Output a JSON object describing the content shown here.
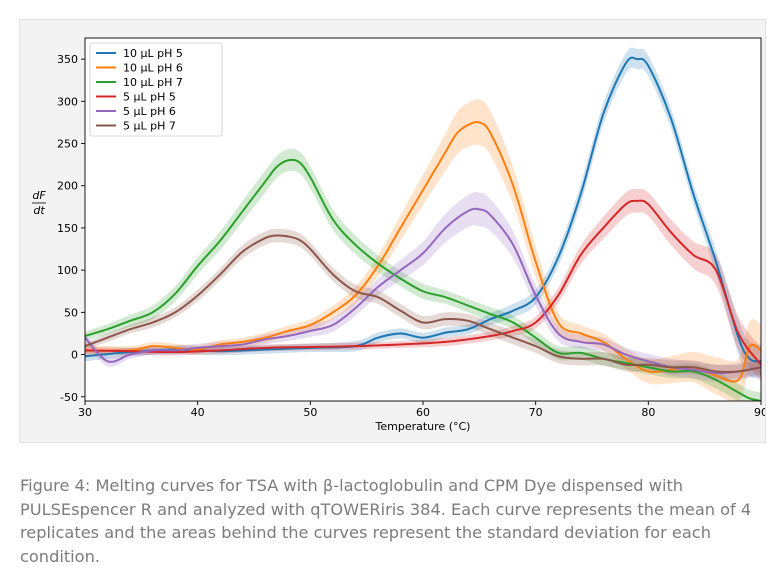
{
  "chart_data": {
    "type": "line",
    "xlabel": "Temperature (°C)",
    "ylabel_top": "dF",
    "ylabel_bottom": "dt",
    "xlim": [
      30,
      90
    ],
    "ylim": [
      -55,
      375
    ],
    "x_ticks": [
      30,
      40,
      50,
      60,
      70,
      80,
      90
    ],
    "y_ticks": [
      -50,
      0,
      50,
      100,
      150,
      200,
      250,
      300,
      350
    ],
    "grid": false,
    "legend_position": "top-left",
    "series": [
      {
        "name": "10 µL pH 5",
        "color": "#1f77b4",
        "x": [
          30,
          34,
          38,
          42,
          46,
          50,
          54,
          56,
          58,
          60,
          62,
          64,
          66,
          68,
          70,
          72,
          74,
          76,
          78,
          79,
          80,
          82,
          84,
          86,
          88,
          89,
          90
        ],
        "y": [
          -2,
          3,
          6,
          4,
          6,
          8,
          10,
          20,
          25,
          20,
          26,
          30,
          42,
          52,
          68,
          115,
          190,
          285,
          345,
          350,
          342,
          280,
          190,
          110,
          20,
          -5,
          -8
        ],
        "std": [
          6,
          5,
          5,
          5,
          5,
          5,
          6,
          6,
          6,
          6,
          6,
          6,
          7,
          8,
          9,
          10,
          12,
          12,
          12,
          12,
          12,
          12,
          12,
          14,
          20,
          20,
          20
        ]
      },
      {
        "name": "10 µL pH 6",
        "color": "#ff7f0e",
        "x": [
          30,
          34,
          36,
          38,
          40,
          42,
          44,
          46,
          48,
          50,
          52,
          54,
          56,
          58,
          60,
          62,
          63,
          64,
          65,
          66,
          68,
          70,
          72,
          74,
          76,
          78,
          80,
          82,
          84,
          86,
          88,
          89,
          90
        ],
        "y": [
          5,
          5,
          10,
          8,
          6,
          12,
          15,
          20,
          28,
          35,
          50,
          70,
          105,
          150,
          195,
          240,
          262,
          272,
          275,
          262,
          200,
          110,
          38,
          25,
          15,
          -5,
          -20,
          -18,
          -15,
          -25,
          -30,
          10,
          5
        ],
        "std": [
          6,
          5,
          5,
          5,
          5,
          5,
          5,
          6,
          6,
          7,
          8,
          10,
          12,
          15,
          18,
          22,
          25,
          26,
          27,
          26,
          22,
          18,
          12,
          10,
          10,
          12,
          14,
          16,
          18,
          22,
          25,
          30,
          30
        ]
      },
      {
        "name": "10 µL pH 7",
        "color": "#2ca02c",
        "x": [
          30,
          32,
          34,
          36,
          38,
          40,
          42,
          44,
          46,
          47,
          48,
          49,
          50,
          52,
          54,
          56,
          58,
          60,
          62,
          64,
          66,
          68,
          70,
          72,
          74,
          76,
          78,
          80,
          82,
          84,
          86,
          88,
          89,
          90
        ],
        "y": [
          22,
          30,
          40,
          50,
          72,
          105,
          135,
          170,
          205,
          222,
          230,
          228,
          210,
          160,
          130,
          108,
          90,
          75,
          68,
          58,
          48,
          38,
          20,
          2,
          2,
          -5,
          -10,
          -15,
          -20,
          -20,
          -30,
          -45,
          -52,
          -55
        ],
        "std": [
          5,
          6,
          7,
          8,
          9,
          10,
          11,
          12,
          13,
          13,
          13,
          13,
          13,
          12,
          11,
          10,
          9,
          9,
          8,
          8,
          8,
          8,
          8,
          8,
          8,
          8,
          8,
          8,
          8,
          9,
          10,
          10,
          10,
          10
        ]
      },
      {
        "name": "5 µL pH 5",
        "color": "#d62728",
        "x": [
          30,
          34,
          38,
          42,
          46,
          50,
          54,
          58,
          62,
          66,
          68,
          70,
          72,
          74,
          76,
          78,
          79,
          80,
          82,
          84,
          86,
          88,
          90
        ],
        "y": [
          5,
          4,
          3,
          5,
          8,
          9,
          10,
          12,
          15,
          22,
          28,
          38,
          70,
          118,
          150,
          178,
          182,
          178,
          145,
          118,
          100,
          25,
          -12
        ],
        "std": [
          4,
          4,
          4,
          4,
          4,
          4,
          4,
          4,
          5,
          5,
          6,
          7,
          9,
          11,
          13,
          14,
          14,
          14,
          15,
          16,
          18,
          20,
          20
        ]
      },
      {
        "name": "5 µL pH 6",
        "color": "#9467bd",
        "x": [
          30,
          32,
          34,
          36,
          38,
          40,
          42,
          44,
          46,
          48,
          50,
          52,
          54,
          56,
          58,
          60,
          62,
          64,
          65,
          66,
          68,
          70,
          72,
          74,
          76,
          78,
          80,
          82,
          84,
          86,
          88,
          90
        ],
        "y": [
          20,
          -8,
          0,
          5,
          5,
          8,
          10,
          12,
          18,
          22,
          28,
          35,
          55,
          80,
          100,
          120,
          150,
          170,
          172,
          165,
          130,
          70,
          25,
          15,
          12,
          0,
          -8,
          -15,
          -18,
          -22,
          -20,
          -15
        ],
        "std": [
          5,
          6,
          5,
          5,
          5,
          5,
          5,
          5,
          6,
          6,
          7,
          8,
          9,
          10,
          12,
          14,
          17,
          19,
          20,
          19,
          16,
          12,
          9,
          8,
          8,
          8,
          9,
          10,
          10,
          10,
          10,
          10
        ]
      },
      {
        "name": "5 µL pH 7",
        "color": "#8c564b",
        "x": [
          30,
          32,
          34,
          36,
          38,
          40,
          42,
          44,
          46,
          47,
          48,
          49,
          50,
          52,
          54,
          56,
          58,
          60,
          62,
          64,
          66,
          68,
          70,
          72,
          74,
          76,
          78,
          80,
          82,
          84,
          86,
          88,
          90
        ],
        "y": [
          10,
          20,
          30,
          38,
          50,
          70,
          95,
          122,
          138,
          141,
          140,
          136,
          125,
          95,
          75,
          68,
          52,
          38,
          42,
          40,
          30,
          20,
          10,
          -2,
          -5,
          -5,
          -12,
          -12,
          -15,
          -15,
          -20,
          -20,
          -15
        ],
        "std": [
          4,
          5,
          5,
          6,
          6,
          7,
          7,
          8,
          8,
          8,
          8,
          8,
          8,
          8,
          8,
          8,
          8,
          8,
          8,
          8,
          8,
          8,
          8,
          8,
          8,
          8,
          8,
          8,
          8,
          8,
          8,
          8,
          8
        ]
      }
    ]
  },
  "caption": "Figure 4: Melting curves for TSA with β-lactoglobulin and CPM Dye dispensed with PULSEspencer R and analyzed with qTOWERiris 384. Each curve represents the mean of 4 replicates and the areas behind the curves represent the standard deviation for each condition."
}
